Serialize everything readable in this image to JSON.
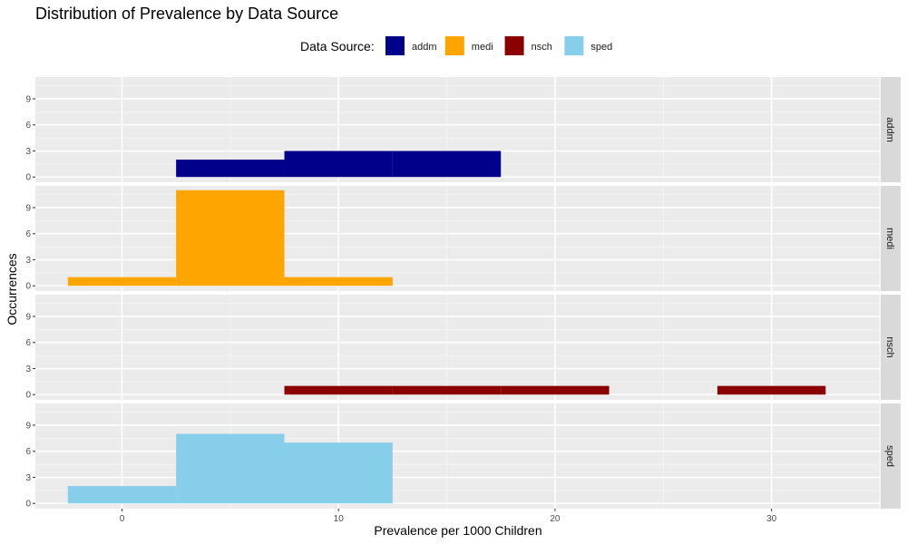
{
  "chart_data": {
    "type": "bar",
    "subtype": "faceted-histogram",
    "title": "Distribution of Prevalence by Data Source",
    "xlabel": "Prevalence per 1000 Children",
    "ylabel": "Occurrences",
    "xlim": [
      -4,
      35
    ],
    "ylim": [
      -0.6,
      11.5
    ],
    "x_ticks": [
      0,
      10,
      20,
      30
    ],
    "y_ticks": [
      0,
      3,
      6,
      9
    ],
    "binwidth": 5,
    "grid": true,
    "legend": {
      "title": "Data Source:",
      "position": "top"
    },
    "series": [
      {
        "name": "addm",
        "color": "#00008B",
        "bins": [
          {
            "x0": 2.5,
            "x1": 7.5,
            "count": 2
          },
          {
            "x0": 7.5,
            "x1": 12.5,
            "count": 3
          },
          {
            "x0": 12.5,
            "x1": 17.5,
            "count": 3
          }
        ]
      },
      {
        "name": "medi",
        "color": "#FFA500",
        "bins": [
          {
            "x0": -2.5,
            "x1": 2.5,
            "count": 1
          },
          {
            "x0": 2.5,
            "x1": 7.5,
            "count": 11
          },
          {
            "x0": 7.5,
            "x1": 12.5,
            "count": 1
          }
        ]
      },
      {
        "name": "nsch",
        "color": "#8B0000",
        "bins": [
          {
            "x0": 7.5,
            "x1": 12.5,
            "count": 1
          },
          {
            "x0": 12.5,
            "x1": 17.5,
            "count": 1
          },
          {
            "x0": 17.5,
            "x1": 22.5,
            "count": 1
          },
          {
            "x0": 27.5,
            "x1": 32.5,
            "count": 1
          }
        ]
      },
      {
        "name": "sped",
        "color": "#87CEEB",
        "bins": [
          {
            "x0": -2.5,
            "x1": 2.5,
            "count": 2
          },
          {
            "x0": 2.5,
            "x1": 7.5,
            "count": 8
          },
          {
            "x0": 7.5,
            "x1": 12.5,
            "count": 7
          }
        ]
      }
    ]
  }
}
